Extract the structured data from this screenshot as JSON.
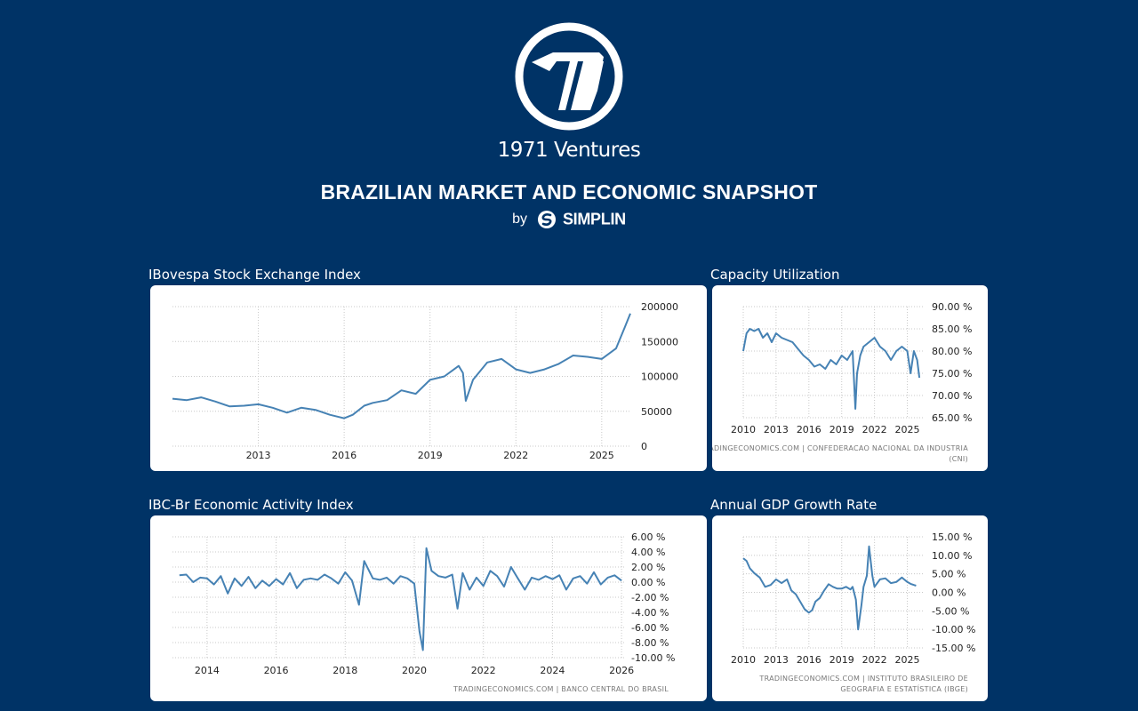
{
  "brand": {
    "name": "1971 Ventures",
    "icon": "1971-ventures-logo"
  },
  "header": {
    "title": "BRAZILIAN MARKET AND ECONOMIC SNAPSHOT",
    "by": "by",
    "partner": "SIMPLIN",
    "partner_icon": "simplin-logo"
  },
  "colors": {
    "background": "#003366",
    "line": "#4682b4",
    "card": "#ffffff"
  },
  "chart_data": [
    {
      "id": "ibovespa",
      "type": "line",
      "title": "IBovespa Stock Exchange Index",
      "xlabel": "",
      "ylabel": "",
      "x_ticks": [
        "2013",
        "2016",
        "2019",
        "2022",
        "2025"
      ],
      "y_ticks": [
        "0",
        "50000",
        "100000",
        "150000",
        "200000"
      ],
      "xlim": [
        2010.0,
        2026.0
      ],
      "ylim": [
        0,
        200000
      ],
      "grid": true,
      "source": "",
      "series": [
        {
          "x": [
            2010.0,
            2010.5,
            2011.0,
            2011.5,
            2012.0,
            2012.5,
            2013.0,
            2013.5,
            2014.0,
            2014.5,
            2015.0,
            2015.5,
            2016.0,
            2016.3,
            2016.7,
            2017.0,
            2017.5,
            2018.0,
            2018.5,
            2019.0,
            2019.5,
            2020.0,
            2020.15,
            2020.25,
            2020.5,
            2021.0,
            2021.5,
            2022.0,
            2022.5,
            2023.0,
            2023.5,
            2024.0,
            2024.5,
            2025.0,
            2025.5,
            2025.8,
            2026.0
          ],
          "y": [
            68000,
            66000,
            70000,
            64000,
            57000,
            58000,
            60000,
            55000,
            48000,
            55000,
            52000,
            45000,
            40000,
            45000,
            58000,
            62000,
            66000,
            80000,
            75000,
            95000,
            100000,
            115000,
            105000,
            65000,
            95000,
            120000,
            125000,
            110000,
            105000,
            110000,
            118000,
            130000,
            128000,
            125000,
            140000,
            170000,
            190000
          ]
        }
      ]
    },
    {
      "id": "capacity",
      "type": "line",
      "title": "Capacity Utilization",
      "xlabel": "",
      "ylabel": "",
      "x_ticks": [
        "2010",
        "2013",
        "2016",
        "2019",
        "2022",
        "2025"
      ],
      "y_ticks": [
        "65.00 %",
        "70.00 %",
        "75.00 %",
        "80.00 %",
        "85.00 %",
        "90.00 %"
      ],
      "xlim": [
        2010,
        2026.5
      ],
      "ylim": [
        65,
        90
      ],
      "grid": true,
      "source": "TRADINGECONOMICS.COM | CONFEDERACAO NACIONAL DA INDUSTRIA (CNI)",
      "series": [
        {
          "x": [
            2010.0,
            2010.3,
            2010.6,
            2011.0,
            2011.4,
            2011.8,
            2012.2,
            2012.6,
            2013.0,
            2013.5,
            2014.0,
            2014.5,
            2015.0,
            2015.5,
            2016.0,
            2016.5,
            2017.0,
            2017.5,
            2018.0,
            2018.5,
            2019.0,
            2019.5,
            2020.0,
            2020.25,
            2020.4,
            2020.7,
            2021.0,
            2021.5,
            2022.0,
            2022.5,
            2023.0,
            2023.5,
            2024.0,
            2024.5,
            2025.0,
            2025.3,
            2025.6,
            2025.9,
            2026.1
          ],
          "y": [
            80,
            84,
            85,
            84.5,
            85,
            83,
            84,
            82,
            84,
            83,
            82.5,
            82,
            80.5,
            79,
            78,
            76.5,
            77,
            76,
            78,
            77,
            79,
            78,
            80,
            67,
            75,
            79,
            81,
            82,
            83,
            81,
            80,
            78,
            80,
            81,
            80,
            75,
            80,
            78,
            74
          ]
        }
      ]
    },
    {
      "id": "ibcbr",
      "type": "line",
      "title": "IBC-Br Economic Activity Index",
      "xlabel": "",
      "ylabel": "",
      "x_ticks": [
        "2014",
        "2016",
        "2018",
        "2020",
        "2022",
        "2024",
        "2026"
      ],
      "y_ticks": [
        "-10.00 %",
        "-8.00 %",
        "-6.00 %",
        "-4.00 %",
        "-2.00 %",
        "0.00 %",
        "2.00 %",
        "4.00 %",
        "6.00 %"
      ],
      "xlim": [
        2013.0,
        2026.1
      ],
      "ylim": [
        -10,
        6
      ],
      "grid": true,
      "source": "TRADINGECONOMICS.COM | BANCO CENTRAL DO BRASIL",
      "series": [
        {
          "x": [
            2013.2,
            2013.4,
            2013.6,
            2013.8,
            2014.0,
            2014.2,
            2014.4,
            2014.6,
            2014.8,
            2015.0,
            2015.2,
            2015.4,
            2015.6,
            2015.8,
            2016.0,
            2016.2,
            2016.4,
            2016.6,
            2016.8,
            2017.0,
            2017.2,
            2017.4,
            2017.6,
            2017.8,
            2018.0,
            2018.2,
            2018.4,
            2018.55,
            2018.8,
            2019.0,
            2019.2,
            2019.4,
            2019.6,
            2019.8,
            2020.0,
            2020.15,
            2020.25,
            2020.35,
            2020.5,
            2020.7,
            2020.9,
            2021.1,
            2021.25,
            2021.4,
            2021.6,
            2021.8,
            2022.0,
            2022.2,
            2022.4,
            2022.6,
            2022.8,
            2023.0,
            2023.2,
            2023.4,
            2023.6,
            2023.8,
            2024.0,
            2024.2,
            2024.4,
            2024.6,
            2024.8,
            2025.0,
            2025.2,
            2025.4,
            2025.6,
            2025.8,
            2026.0
          ],
          "y": [
            0.9,
            1.0,
            0.0,
            0.6,
            0.5,
            -0.3,
            0.8,
            -1.5,
            0.5,
            -0.5,
            0.7,
            -0.8,
            0.2,
            -0.5,
            0.4,
            -0.3,
            1.2,
            -0.8,
            0.3,
            0.5,
            0.3,
            1.0,
            0.5,
            -0.2,
            1.3,
            0.2,
            -3.0,
            2.8,
            0.5,
            0.3,
            0.6,
            -0.2,
            0.8,
            0.5,
            -0.2,
            -6.5,
            -9.0,
            4.5,
            1.5,
            0.8,
            0.6,
            1.0,
            -3.5,
            1.2,
            -1.0,
            0.6,
            -0.5,
            1.5,
            0.8,
            -0.6,
            2.0,
            0.5,
            -1.0,
            0.6,
            0.3,
            0.8,
            0.4,
            0.9,
            -1.0,
            0.5,
            0.8,
            -0.2,
            1.3,
            -0.3,
            0.6,
            0.9,
            0.2
          ]
        }
      ]
    },
    {
      "id": "gdp",
      "type": "line",
      "title": "Annual GDP Growth Rate",
      "xlabel": "",
      "ylabel": "",
      "x_ticks": [
        "2010",
        "2013",
        "2016",
        "2019",
        "2022",
        "2025"
      ],
      "y_ticks": [
        "-15.00 %",
        "-10.00 %",
        "-5.00 %",
        "0.00 %",
        "5.00 %",
        "10.00 %",
        "15.00 %"
      ],
      "xlim": [
        2010,
        2026.5
      ],
      "ylim": [
        -15,
        15
      ],
      "grid": true,
      "source": "TRADINGECONOMICS.COM | INSTITUTO BRASILEIRO DE GEOGRAFIA E ESTATÍSTICA (IBGE)",
      "series": [
        {
          "x": [
            2010.0,
            2010.3,
            2010.6,
            2011.0,
            2011.5,
            2012.0,
            2012.5,
            2013.0,
            2013.5,
            2014.0,
            2014.4,
            2014.8,
            2015.2,
            2015.6,
            2016.0,
            2016.3,
            2016.6,
            2017.0,
            2017.4,
            2017.8,
            2018.2,
            2018.6,
            2019.0,
            2019.4,
            2019.8,
            2020.0,
            2020.3,
            2020.5,
            2020.8,
            2021.0,
            2021.3,
            2021.5,
            2021.8,
            2022.0,
            2022.5,
            2023.0,
            2023.5,
            2024.0,
            2024.5,
            2025.0,
            2025.3,
            2025.6,
            2025.8
          ],
          "y": [
            9.2,
            8.5,
            6.5,
            5.2,
            4.0,
            1.5,
            2.0,
            3.5,
            2.5,
            3.5,
            0.5,
            -0.5,
            -2.5,
            -4.5,
            -5.5,
            -4.8,
            -2.5,
            -1.5,
            0.5,
            2.2,
            1.5,
            1.0,
            1.0,
            1.5,
            0.8,
            1.5,
            -2.0,
            -10.0,
            -3.5,
            1.5,
            4.5,
            12.4,
            4.5,
            1.5,
            3.5,
            3.8,
            2.5,
            2.8,
            4.0,
            2.8,
            2.3,
            2.0,
            1.8
          ]
        }
      ]
    }
  ]
}
